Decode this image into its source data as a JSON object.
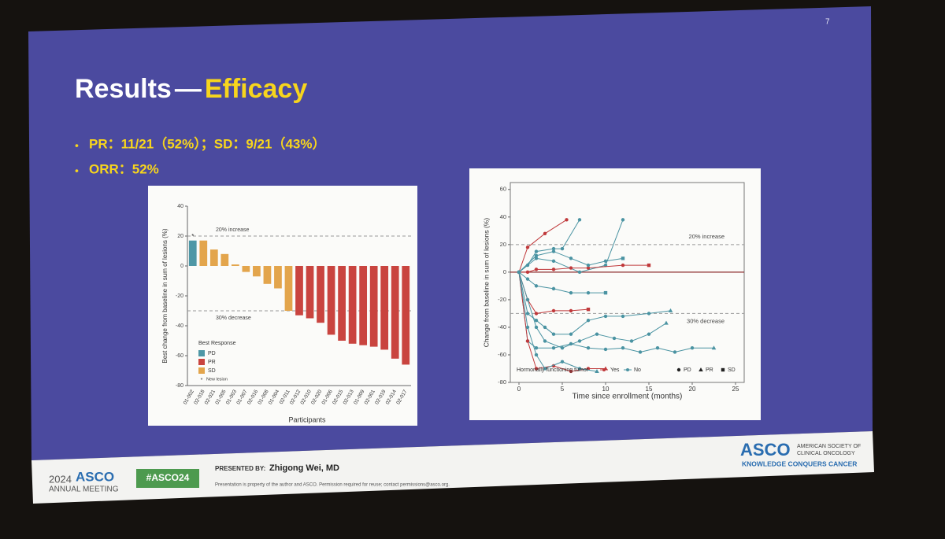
{
  "slide_number": "7",
  "title": {
    "main": "Results",
    "separator": "—",
    "highlight": "Efficacy"
  },
  "bullets": [
    "PR：11/21（52%）；SD：9/21（43%）",
    "ORR：52%"
  ],
  "chart_data": [
    {
      "type": "bar",
      "ylabel": "Best change from baseline in sum of lesions (%)",
      "xlabel": "Participants",
      "categories": [
        "01-002",
        "02-018",
        "02-021",
        "01-005",
        "01-003",
        "01-007",
        "02-016",
        "01-008",
        "01-004",
        "02-011",
        "02-012",
        "02-010",
        "02-020",
        "01-006",
        "02-015",
        "02-013",
        "01-009",
        "02-001",
        "02-019",
        "02-014",
        "02-017"
      ],
      "values": [
        17,
        17,
        11,
        8,
        1,
        -4,
        -7,
        -12,
        -15,
        -30,
        -33,
        -35,
        -38,
        -46,
        -50,
        -52,
        -53,
        -54,
        -56,
        -62,
        -66
      ],
      "responses": [
        "PD",
        "SD",
        "SD",
        "SD",
        "SD",
        "SD",
        "SD",
        "SD",
        "SD",
        "SD",
        "PR",
        "PR",
        "PR",
        "PR",
        "PR",
        "PR",
        "PR",
        "PR",
        "PR",
        "PR",
        "PR"
      ],
      "new_lesion": "01-002",
      "ylim": [
        -80,
        40
      ],
      "yticks": [
        -80,
        -60,
        -40,
        -20,
        0,
        20,
        40
      ],
      "reference_lines": [
        {
          "value": 20,
          "label": "20% increase"
        },
        {
          "value": -30,
          "label": "30% decrease"
        }
      ],
      "legend_title": "Best Response",
      "legend": [
        {
          "name": "PD",
          "color": "#4e97a6"
        },
        {
          "name": "PR",
          "color": "#c9443f"
        },
        {
          "name": "SD",
          "color": "#e3a54c"
        }
      ],
      "new_lesion_label": "New lesion"
    },
    {
      "type": "spider",
      "ylabel": "Change from baseline in sum of lesions (%)",
      "xlabel": "Time since enrollment (months)",
      "xlim": [
        -1,
        26
      ],
      "xticks": [
        0,
        5,
        10,
        15,
        20,
        25
      ],
      "ylim": [
        -80,
        65
      ],
      "yticks": [
        -80,
        -60,
        -40,
        -20,
        0,
        20,
        40,
        60
      ],
      "reference_lines": [
        {
          "value": 20,
          "label": "20% increase"
        },
        {
          "value": -30,
          "label": "30% decrease"
        }
      ],
      "legend_title": "Hormonally functioning tumor",
      "groups": [
        {
          "name": "Yes",
          "color": "#c0393b"
        },
        {
          "name": "No",
          "color": "#4a93a2"
        }
      ],
      "responses": [
        {
          "name": "PD",
          "shape": "circle"
        },
        {
          "name": "PR",
          "shape": "triangle"
        },
        {
          "name": "SD",
          "shape": "square"
        }
      ],
      "series": [
        {
          "group": "Yes",
          "response": "PD",
          "x": [
            0,
            1,
            3,
            5.5
          ],
          "values": [
            0,
            18,
            28,
            38
          ]
        },
        {
          "group": "No",
          "response": "PD",
          "x": [
            0,
            1,
            2,
            4,
            5,
            7
          ],
          "values": [
            0,
            5,
            15,
            17,
            17,
            38
          ]
        },
        {
          "group": "No",
          "response": "PD",
          "x": [
            0,
            2,
            4,
            7,
            10,
            12
          ],
          "values": [
            0,
            10,
            8,
            0,
            5,
            38
          ]
        },
        {
          "group": "Yes",
          "response": "SD",
          "x": [
            0,
            1,
            2,
            4,
            6,
            8,
            12,
            15
          ],
          "values": [
            0,
            0,
            2,
            2,
            3,
            3,
            5,
            5
          ]
        },
        {
          "group": "Yes",
          "response": "SD",
          "x": [
            0,
            1,
            2,
            4,
            6,
            8
          ],
          "values": [
            0,
            -20,
            -30,
            -28,
            -28,
            -27
          ]
        },
        {
          "group": "No",
          "response": "PR",
          "x": [
            0,
            1,
            2,
            3,
            4,
            6,
            8,
            10,
            12,
            15,
            17.5
          ],
          "values": [
            0,
            -30,
            -35,
            -40,
            -45,
            -45,
            -35,
            -32,
            -32,
            -30,
            -28
          ]
        },
        {
          "group": "No",
          "response": "PR",
          "x": [
            0,
            1,
            2,
            4,
            6,
            8,
            10,
            12,
            14,
            16,
            18,
            20,
            22.5
          ],
          "values": [
            0,
            -50,
            -55,
            -55,
            -52,
            -55,
            -56,
            -55,
            -58,
            -55,
            -58,
            -55,
            -55
          ]
        },
        {
          "group": "Yes",
          "response": "PR",
          "x": [
            0,
            1,
            2,
            4,
            6,
            8,
            10
          ],
          "values": [
            0,
            -50,
            -70,
            -68,
            -72,
            -70,
            -70
          ]
        },
        {
          "group": "No",
          "response": "PR",
          "x": [
            0,
            1,
            2,
            3,
            5,
            7,
            9,
            11,
            13,
            15,
            17
          ],
          "values": [
            0,
            -20,
            -40,
            -50,
            -55,
            -50,
            -45,
            -48,
            -50,
            -45,
            -37
          ]
        },
        {
          "group": "No",
          "response": "SD",
          "x": [
            0,
            1,
            2,
            4,
            6,
            8,
            10
          ],
          "values": [
            0,
            -5,
            -10,
            -12,
            -15,
            -15,
            -15
          ]
        },
        {
          "group": "No",
          "response": "PR",
          "x": [
            0,
            1,
            2,
            3,
            5,
            7,
            9
          ],
          "values": [
            0,
            -40,
            -60,
            -70,
            -65,
            -70,
            -72
          ]
        },
        {
          "group": "No",
          "response": "SD",
          "x": [
            0,
            2,
            4,
            6,
            8,
            10,
            12
          ],
          "values": [
            0,
            12,
            15,
            10,
            5,
            8,
            10
          ]
        }
      ]
    }
  ],
  "footer": {
    "meeting_year": "2024",
    "meeting_name": "ASCO",
    "meeting_sub": "ANNUAL MEETING",
    "hashtag": "#ASCO24",
    "presented_by": "PRESENTED BY:",
    "presenter": "Zhigong Wei, MD",
    "disclaimer": "Presentation is property of the author and ASCO. Permission required for reuse; contact permissions@asco.org.",
    "org_logo": "ASCO",
    "org_name_1": "AMERICAN SOCIETY OF",
    "org_name_2": "CLINICAL ONCOLOGY",
    "tagline": "KNOWLEDGE CONQUERS CANCER"
  }
}
